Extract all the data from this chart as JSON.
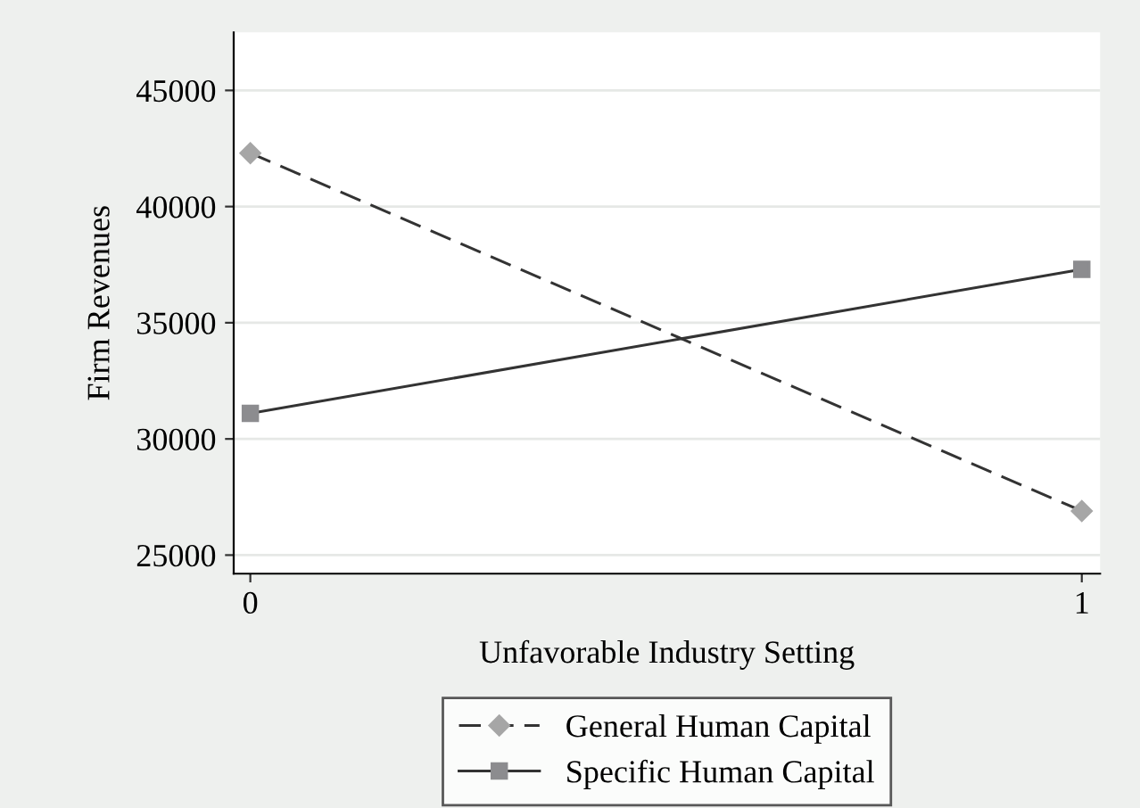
{
  "chart_data": {
    "type": "line",
    "xlabel": "Unfavorable Industry Setting",
    "ylabel": "Firm Revenues",
    "x": [
      0,
      1
    ],
    "series": [
      {
        "name": "General Human Capital",
        "color": "#a6a6a6",
        "values": [
          42300,
          26900
        ],
        "marker": "diamond",
        "line_style": "dashed"
      },
      {
        "name": "Specific Human Capital",
        "color": "#8c8c8f",
        "values": [
          31100,
          37300
        ],
        "marker": "square",
        "line_style": "solid"
      }
    ],
    "xlim": [
      -0.02,
      1.022
    ],
    "xticks": [
      0,
      1
    ],
    "ylim": [
      24200,
      47500
    ],
    "yticks": [
      25000,
      30000,
      35000,
      40000,
      45000
    ],
    "grid": "y",
    "legend": "bottom"
  }
}
